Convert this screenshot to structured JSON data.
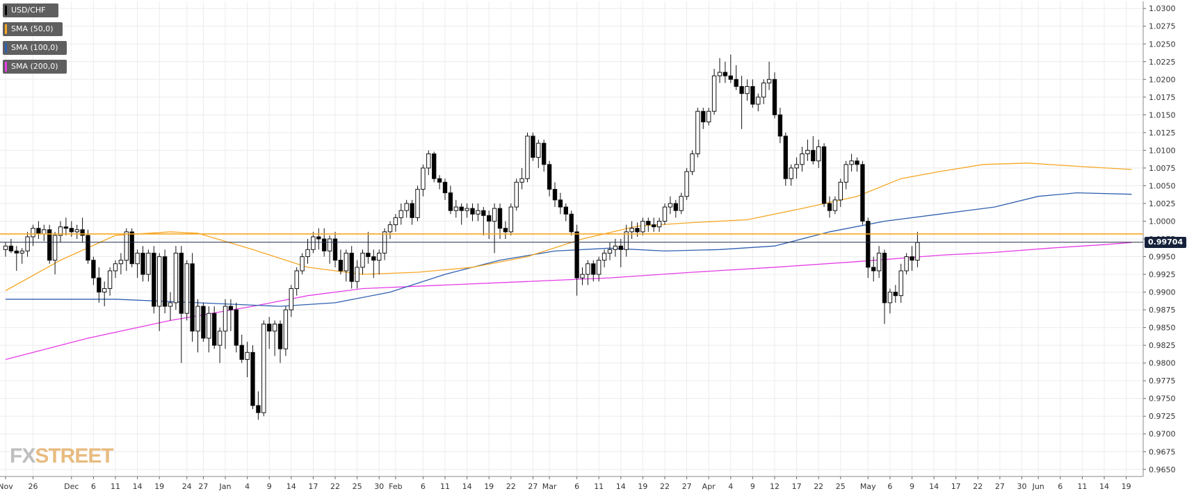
{
  "chart_data": {
    "type": "candlestick",
    "symbol": "USD/CHF",
    "title": "",
    "xlabel": "",
    "ylabel": "",
    "ylim": [
      0.964,
      1.031
    ],
    "y_ticks": [
      "1.0300",
      "1.0275",
      "1.0250",
      "1.0225",
      "1.0200",
      "1.0175",
      "1.0150",
      "1.0125",
      "1.0100",
      "1.0075",
      "1.0050",
      "1.0025",
      "1.0000",
      "0.9975",
      "0.9950",
      "0.9925",
      "0.9900",
      "0.9875",
      "0.9850",
      "0.9825",
      "0.9800",
      "0.9775",
      "0.9750",
      "0.9725",
      "0.9700",
      "0.9675",
      "0.9650"
    ],
    "x_ticks": [
      "Nov",
      "26",
      "Dec",
      "6",
      "11",
      "14",
      "19",
      "24",
      "27",
      "Jan",
      "4",
      "9",
      "14",
      "17",
      "22",
      "25",
      "30",
      "Feb",
      "6",
      "11",
      "14",
      "19",
      "22",
      "27",
      "Mar",
      "6",
      "11",
      "14",
      "19",
      "22",
      "27",
      "Apr",
      "4",
      "9",
      "12",
      "17",
      "22",
      "25",
      "May",
      "6",
      "9",
      "14",
      "17",
      "22",
      "27",
      "30",
      "Jun",
      "6",
      "11",
      "14",
      "19"
    ],
    "x_tick_index": [
      0,
      5,
      12,
      16,
      20,
      24,
      28,
      33,
      36,
      40,
      44,
      48,
      52,
      56,
      60,
      64,
      68,
      71,
      76,
      80,
      84,
      88,
      92,
      96,
      99,
      104,
      108,
      112,
      116,
      120,
      124,
      128,
      132,
      136,
      140,
      144,
      148,
      152,
      157,
      161,
      165,
      169,
      173,
      177,
      181,
      185,
      188,
      192,
      196,
      200,
      204
    ],
    "legend": [
      {
        "label": "USD/CHF",
        "color": "#000000"
      },
      {
        "label": "SMA (50,0)",
        "color": "#f6a623"
      },
      {
        "label": "SMA (100,0)",
        "color": "#2f5fb0"
      },
      {
        "label": "SMA (200,0)",
        "color": "#e63ce6"
      }
    ],
    "legend_position": "top-left",
    "grid": true,
    "current_price": "0.99704",
    "current_price_value": 0.99704,
    "horizontal_level": 0.9982,
    "candles": [
      [
        0.996,
        0.997,
        0.995,
        0.9965
      ],
      [
        0.9965,
        0.9975,
        0.9955,
        0.9958
      ],
      [
        0.9958,
        0.9965,
        0.993,
        0.9955
      ],
      [
        0.9955,
        0.9962,
        0.994,
        0.9958
      ],
      [
        0.9958,
        0.9985,
        0.995,
        0.9978
      ],
      [
        0.9978,
        0.9995,
        0.9965,
        0.999
      ],
      [
        0.999,
        1.0,
        0.9975,
        0.9982
      ],
      [
        0.9982,
        0.9995,
        0.9972,
        0.9988
      ],
      [
        0.9988,
        0.9995,
        0.994,
        0.9945
      ],
      [
        0.9945,
        0.9985,
        0.9925,
        0.998
      ],
      [
        0.998,
        1.0,
        0.997,
        0.9992
      ],
      [
        0.9992,
        1.0005,
        0.998,
        0.999
      ],
      [
        0.999,
        1.0,
        0.9978,
        0.9985
      ],
      [
        0.9985,
        0.9995,
        0.9975,
        0.9988
      ],
      [
        0.9988,
        1.0005,
        0.997,
        0.998
      ],
      [
        0.998,
        0.9988,
        0.994,
        0.9945
      ],
      [
        0.9945,
        0.995,
        0.991,
        0.992
      ],
      [
        0.992,
        0.9935,
        0.9885,
        0.99
      ],
      [
        0.99,
        0.9915,
        0.988,
        0.9905
      ],
      [
        0.9905,
        0.9935,
        0.9895,
        0.993
      ],
      [
        0.993,
        0.9945,
        0.992,
        0.994
      ],
      [
        0.994,
        0.9955,
        0.9925,
        0.9945
      ],
      [
        0.9945,
        0.999,
        0.993,
        0.9985
      ],
      [
        0.9985,
        0.999,
        0.9935,
        0.994
      ],
      [
        0.994,
        0.996,
        0.992,
        0.9955
      ],
      [
        0.9955,
        0.9965,
        0.9915,
        0.9925
      ],
      [
        0.9925,
        0.996,
        0.9915,
        0.9955
      ],
      [
        0.9955,
        0.9965,
        0.987,
        0.988
      ],
      [
        0.988,
        0.9955,
        0.9845,
        0.995
      ],
      [
        0.995,
        0.996,
        0.987,
        0.988
      ],
      [
        0.988,
        0.99,
        0.986,
        0.9885
      ],
      [
        0.9885,
        0.9965,
        0.9875,
        0.9955
      ],
      [
        0.9955,
        0.9965,
        0.98,
        0.987
      ],
      [
        0.987,
        0.9945,
        0.986,
        0.994
      ],
      [
        0.994,
        0.9955,
        0.983,
        0.9845
      ],
      [
        0.9845,
        0.989,
        0.9815,
        0.988
      ],
      [
        0.988,
        0.9885,
        0.983,
        0.9835
      ],
      [
        0.9835,
        0.988,
        0.9815,
        0.987
      ],
      [
        0.987,
        0.988,
        0.982,
        0.9825
      ],
      [
        0.9825,
        0.985,
        0.98,
        0.9845
      ],
      [
        0.9845,
        0.989,
        0.982,
        0.988
      ],
      [
        0.988,
        0.989,
        0.9845,
        0.9875
      ],
      [
        0.9875,
        0.9885,
        0.9815,
        0.9825
      ],
      [
        0.9825,
        0.984,
        0.98,
        0.9805
      ],
      [
        0.9805,
        0.983,
        0.978,
        0.9815
      ],
      [
        0.9815,
        0.9825,
        0.9735,
        0.974
      ],
      [
        0.974,
        0.976,
        0.972,
        0.973
      ],
      [
        0.973,
        0.986,
        0.9725,
        0.9855
      ],
      [
        0.9855,
        0.9865,
        0.982,
        0.9845
      ],
      [
        0.9845,
        0.986,
        0.981,
        0.9855
      ],
      [
        0.9855,
        0.986,
        0.98,
        0.982
      ],
      [
        0.982,
        0.988,
        0.981,
        0.9875
      ],
      [
        0.9875,
        0.991,
        0.9865,
        0.9905
      ],
      [
        0.9905,
        0.9935,
        0.9895,
        0.993
      ],
      [
        0.993,
        0.9955,
        0.9925,
        0.995
      ],
      [
        0.995,
        0.9975,
        0.994,
        0.996
      ],
      [
        0.996,
        0.9985,
        0.9955,
        0.9978
      ],
      [
        0.9978,
        0.999,
        0.996,
        0.9975
      ],
      [
        0.9975,
        0.999,
        0.995,
        0.9958
      ],
      [
        0.9958,
        0.998,
        0.994,
        0.9975
      ],
      [
        0.9975,
        0.9985,
        0.9935,
        0.9945
      ],
      [
        0.9945,
        0.996,
        0.9925,
        0.993
      ],
      [
        0.993,
        0.996,
        0.9915,
        0.9955
      ],
      [
        0.9955,
        0.9965,
        0.9905,
        0.9915
      ],
      [
        0.9915,
        0.9945,
        0.9905,
        0.9935
      ],
      [
        0.9935,
        0.996,
        0.9925,
        0.9955
      ],
      [
        0.9955,
        0.9985,
        0.994,
        0.995
      ],
      [
        0.995,
        0.996,
        0.992,
        0.9945
      ],
      [
        0.9945,
        0.996,
        0.9925,
        0.9955
      ],
      [
        0.9955,
        0.999,
        0.9945,
        0.9985
      ],
      [
        0.9985,
        1.0,
        0.9975,
        0.9995
      ],
      [
        0.9995,
        1.001,
        0.9985,
        1.0005
      ],
      [
        1.0005,
        1.0025,
        0.9995,
        1.0015
      ],
      [
        1.0015,
        1.003,
        1.0005,
        1.0025
      ],
      [
        1.0025,
        1.003,
        0.9995,
        1.0005
      ],
      [
        1.0005,
        1.005,
        1.0,
        1.0045
      ],
      [
        1.0045,
        1.008,
        1.0035,
        1.0075
      ],
      [
        1.0075,
        1.01,
        1.0065,
        1.0095
      ],
      [
        1.0095,
        1.0098,
        1.0055,
        1.006
      ],
      [
        1.006,
        1.0065,
        1.0045,
        1.0055
      ],
      [
        1.0055,
        1.006,
        1.003,
        1.004
      ],
      [
        1.004,
        1.005,
        1.001,
        1.0015
      ],
      [
        1.0015,
        1.003,
        1.0005,
        1.002
      ],
      [
        1.002,
        1.0025,
        0.9995,
        1.0015
      ],
      [
        1.0015,
        1.0025,
        1.0005,
        1.0018
      ],
      [
        1.0018,
        1.0025,
        1.0,
        1.001
      ],
      [
        1.001,
        1.0025,
        1.0,
        1.0015
      ],
      [
        1.0015,
        1.002,
        0.998,
        1.0008
      ],
      [
        1.0008,
        1.0015,
        0.9975,
        1.0
      ],
      [
        1.0,
        1.0025,
        0.9955,
        1.0018
      ],
      [
        1.0018,
        1.0025,
        0.9975,
        0.999
      ],
      [
        0.999,
        1.0,
        0.9975,
        0.9985
      ],
      [
        0.9985,
        1.0025,
        0.998,
        1.002
      ],
      [
        1.002,
        1.006,
        1.0015,
        1.0055
      ],
      [
        1.0055,
        1.0075,
        1.0045,
        1.006
      ],
      [
        1.006,
        1.0125,
        1.0055,
        1.012
      ],
      [
        1.012,
        1.0125,
        1.0085,
        1.009
      ],
      [
        1.009,
        1.0115,
        1.0075,
        1.011
      ],
      [
        1.011,
        1.0115,
        1.007,
        1.008
      ],
      [
        1.008,
        1.0085,
        1.0035,
        1.0045
      ],
      [
        1.0045,
        1.0055,
        1.002,
        1.003
      ],
      [
        1.003,
        1.004,
        1.001,
        1.002
      ],
      [
        1.002,
        1.0025,
        1.0,
        1.001
      ],
      [
        1.001,
        1.0015,
        0.998,
        0.9985
      ],
      [
        0.9985,
        0.9995,
        0.9895,
        0.992
      ],
      [
        0.992,
        0.9935,
        0.991,
        0.9925
      ],
      [
        0.9925,
        0.9945,
        0.991,
        0.994
      ],
      [
        0.994,
        0.9945,
        0.9915,
        0.9925
      ],
      [
        0.9925,
        0.995,
        0.9915,
        0.9945
      ],
      [
        0.9945,
        0.996,
        0.9935,
        0.9955
      ],
      [
        0.9955,
        0.997,
        0.9945,
        0.996
      ],
      [
        0.996,
        0.9975,
        0.995,
        0.9965
      ],
      [
        0.9965,
        0.9975,
        0.9935,
        0.996
      ],
      [
        0.996,
        0.9995,
        0.995,
        0.9985
      ],
      [
        0.9985,
        1.0,
        0.9975,
        0.999
      ],
      [
        0.999,
        0.9998,
        0.9978,
        0.9985
      ],
      [
        0.9985,
        1.0005,
        0.998,
        1.0
      ],
      [
        1.0,
        1.0005,
        0.9985,
        0.9995
      ],
      [
        0.9995,
        1.0005,
        0.9985,
        0.9992
      ],
      [
        0.9992,
        1.0005,
        0.9985,
        1.0
      ],
      [
        1.0,
        1.0025,
        0.9995,
        1.002
      ],
      [
        1.002,
        1.0035,
        1.001,
        1.0025
      ],
      [
        1.0025,
        1.003,
        1.0005,
        1.0015
      ],
      [
        1.0015,
        1.004,
        1.001,
        1.0035
      ],
      [
        1.0035,
        1.0075,
        1.003,
        1.007
      ],
      [
        1.007,
        1.01,
        1.0065,
        1.0095
      ],
      [
        1.0095,
        1.016,
        1.009,
        1.0155
      ],
      [
        1.0155,
        1.016,
        1.013,
        1.014
      ],
      [
        1.014,
        1.016,
        1.0135,
        1.0155
      ],
      [
        1.0155,
        1.0215,
        1.015,
        1.0205
      ],
      [
        1.0205,
        1.023,
        1.0195,
        1.021
      ],
      [
        1.021,
        1.0225,
        1.0195,
        1.0205
      ],
      [
        1.0205,
        1.0235,
        1.0195,
        1.02
      ],
      [
        1.02,
        1.022,
        1.0185,
        1.019
      ],
      [
        1.019,
        1.0205,
        1.013,
        1.018
      ],
      [
        1.018,
        1.02,
        1.017,
        1.019
      ],
      [
        1.019,
        1.02,
        1.016,
        1.0165
      ],
      [
        1.0165,
        1.018,
        1.0155,
        1.0175
      ],
      [
        1.0175,
        1.02,
        1.0165,
        1.0195
      ],
      [
        1.0195,
        1.0225,
        1.0185,
        1.02
      ],
      [
        1.02,
        1.021,
        1.0145,
        1.015
      ],
      [
        1.015,
        1.016,
        1.011,
        1.012
      ],
      [
        1.012,
        1.0125,
        1.005,
        1.006
      ],
      [
        1.006,
        1.008,
        1.005,
        1.0075
      ],
      [
        1.0075,
        1.009,
        1.006,
        1.008
      ],
      [
        1.008,
        1.0105,
        1.007,
        1.0095
      ],
      [
        1.0095,
        1.0115,
        1.0085,
        1.01
      ],
      [
        1.01,
        1.012,
        1.008,
        1.0085
      ],
      [
        1.0085,
        1.0115,
        1.0075,
        1.0105
      ],
      [
        1.0105,
        1.011,
        1.002,
        1.0025
      ],
      [
        1.0025,
        1.0035,
        1.0005,
        1.0015
      ],
      [
        1.0015,
        1.0035,
        1.001,
        1.003
      ],
      [
        1.003,
        1.006,
        1.002,
        1.0055
      ],
      [
        1.0055,
        1.0085,
        1.0045,
        1.008
      ],
      [
        1.008,
        1.0095,
        1.007,
        1.0085
      ],
      [
        1.0085,
        1.009,
        1.007,
        1.008
      ],
      [
        1.008,
        1.0085,
        0.9995,
        1.0
      ],
      [
        1.0,
        1.0005,
        0.992,
        0.9935
      ],
      [
        0.9935,
        0.995,
        0.9915,
        0.993
      ],
      [
        0.993,
        0.9965,
        0.992,
        0.9955
      ],
      [
        0.9955,
        0.996,
        0.9855,
        0.9885
      ],
      [
        0.9885,
        0.9905,
        0.987,
        0.99
      ],
      [
        0.99,
        0.991,
        0.9885,
        0.9895
      ],
      [
        0.9895,
        0.994,
        0.9885,
        0.993
      ],
      [
        0.993,
        0.9955,
        0.9925,
        0.995
      ],
      [
        0.995,
        0.9965,
        0.993,
        0.9945
      ],
      [
        0.9945,
        0.9985,
        0.9935,
        0.997
      ]
    ],
    "sma50": [
      [
        0,
        0.9902
      ],
      [
        10,
        0.9945
      ],
      [
        20,
        0.998
      ],
      [
        30,
        0.9985
      ],
      [
        35,
        0.9983
      ],
      [
        45,
        0.996
      ],
      [
        55,
        0.9935
      ],
      [
        65,
        0.9925
      ],
      [
        75,
        0.9928
      ],
      [
        85,
        0.9935
      ],
      [
        95,
        0.995
      ],
      [
        105,
        0.9975
      ],
      [
        115,
        0.9993
      ],
      [
        125,
        0.9998
      ],
      [
        135,
        1.0002
      ],
      [
        145,
        1.0018
      ],
      [
        155,
        1.0035
      ],
      [
        163,
        1.006
      ],
      [
        170,
        1.007
      ],
      [
        178,
        1.008
      ],
      [
        186,
        1.0082
      ],
      [
        196,
        1.0077
      ],
      [
        205,
        1.0073
      ]
    ],
    "sma100": [
      [
        0,
        0.989
      ],
      [
        20,
        0.989
      ],
      [
        35,
        0.9885
      ],
      [
        50,
        0.988
      ],
      [
        60,
        0.9885
      ],
      [
        70,
        0.99
      ],
      [
        80,
        0.9925
      ],
      [
        90,
        0.9945
      ],
      [
        100,
        0.9958
      ],
      [
        110,
        0.9962
      ],
      [
        120,
        0.9958
      ],
      [
        130,
        0.996
      ],
      [
        140,
        0.9965
      ],
      [
        150,
        0.9985
      ],
      [
        160,
        1.0
      ],
      [
        170,
        1.001
      ],
      [
        180,
        1.002
      ],
      [
        188,
        1.0035
      ],
      [
        195,
        1.004
      ],
      [
        205,
        1.0038
      ]
    ],
    "sma200": [
      [
        0,
        0.9805
      ],
      [
        15,
        0.9835
      ],
      [
        30,
        0.986
      ],
      [
        45,
        0.988
      ],
      [
        55,
        0.9895
      ],
      [
        65,
        0.9905
      ],
      [
        80,
        0.991
      ],
      [
        95,
        0.9915
      ],
      [
        110,
        0.992
      ],
      [
        125,
        0.9928
      ],
      [
        140,
        0.9935
      ],
      [
        155,
        0.9943
      ],
      [
        170,
        0.9952
      ],
      [
        180,
        0.9956
      ],
      [
        190,
        0.9962
      ],
      [
        200,
        0.9967
      ],
      [
        205,
        0.997
      ]
    ]
  },
  "watermark": {
    "fx": "FX",
    "street": "STREET"
  }
}
